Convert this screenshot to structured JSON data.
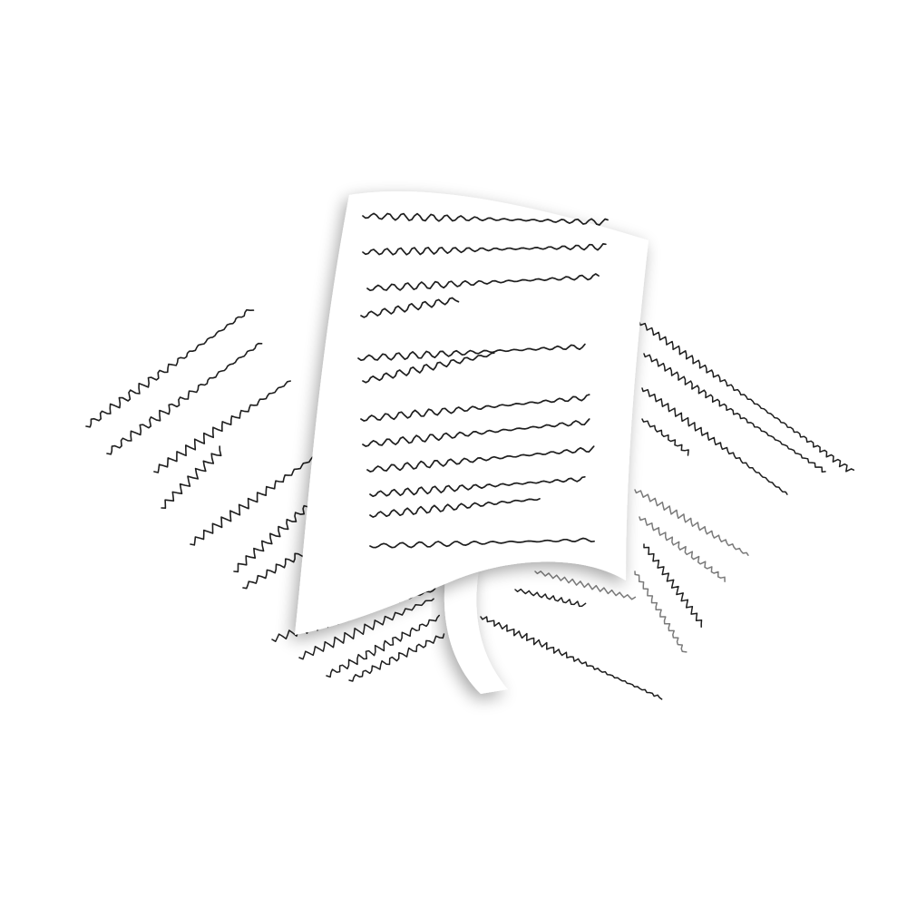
{
  "illustration": {
    "subject": "documents-icon",
    "colors": {
      "background": "#ffffff",
      "paper": "#ffffff",
      "ink": "#1e1e1e",
      "ink_light": "#7a7a7a",
      "shadow": "#000000"
    }
  }
}
